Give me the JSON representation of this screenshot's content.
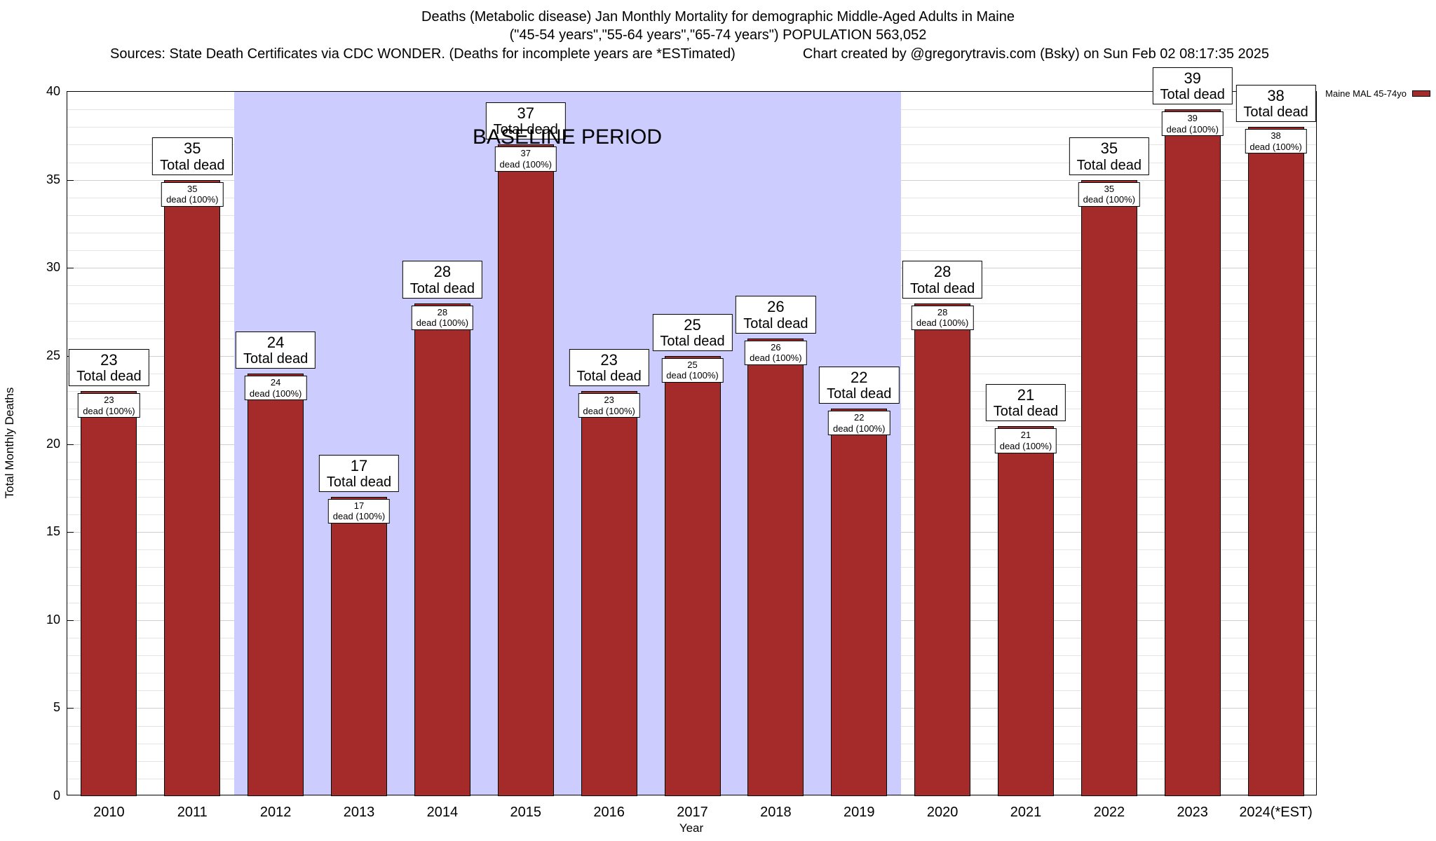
{
  "header": {
    "sources": "Sources: State Death Certificates via CDC WONDER. (Deaths for incomplete years are *ESTimated)",
    "credit": "Chart created by @gregorytravis.com (Bsky) on Sun Feb 02 08:17:35 2025"
  },
  "chart_data": {
    "type": "bar",
    "title": "Deaths (Metabolic disease) Jan Monthly Mortality for demographic Middle-Aged Adults in Maine",
    "subtitle": "(\"45-54 years\",\"55-64 years\",\"65-74 years\") POPULATION 563,052",
    "categories": [
      "2010",
      "2011",
      "2012",
      "2013",
      "2014",
      "2015",
      "2016",
      "2017",
      "2018",
      "2019",
      "2020",
      "2021",
      "2022",
      "2023",
      "2024(*EST)"
    ],
    "values": [
      23,
      35,
      24,
      17,
      28,
      37,
      23,
      25,
      26,
      22,
      28,
      21,
      35,
      39,
      38
    ],
    "bar_label_suffix": "Total dead",
    "bar_sublabel_suffix": "dead (100%)",
    "xlabel": "Year",
    "ylabel": "Total Monthly Deaths",
    "ylim": [
      0,
      40
    ],
    "ytick_step": 5,
    "minor_grid_step": 1,
    "grid": true,
    "bar_color": "#a52a2a",
    "baseline": {
      "label": "BASELINE PERIOD",
      "start_category": "2012",
      "end_category": "2019",
      "color": "#ccccff"
    },
    "legend": {
      "label": "Maine MAL 45-74yo",
      "position": "top-right",
      "swatch_color": "#a52a2a"
    }
  }
}
